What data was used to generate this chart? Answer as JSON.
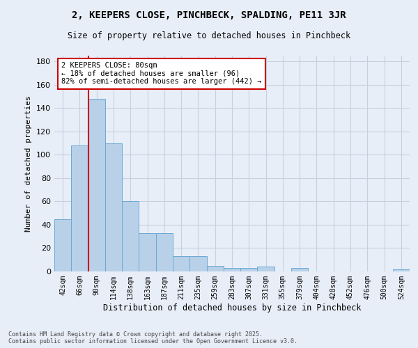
{
  "title": "2, KEEPERS CLOSE, PINCHBECK, SPALDING, PE11 3JR",
  "subtitle": "Size of property relative to detached houses in Pinchbeck",
  "xlabel": "Distribution of detached houses by size in Pinchbeck",
  "ylabel": "Number of detached properties",
  "categories": [
    "42sqm",
    "66sqm",
    "90sqm",
    "114sqm",
    "138sqm",
    "163sqm",
    "187sqm",
    "211sqm",
    "235sqm",
    "259sqm",
    "283sqm",
    "307sqm",
    "331sqm",
    "355sqm",
    "379sqm",
    "404sqm",
    "428sqm",
    "452sqm",
    "476sqm",
    "500sqm",
    "524sqm"
  ],
  "values": [
    45,
    108,
    148,
    110,
    60,
    33,
    33,
    13,
    13,
    5,
    3,
    3,
    4,
    0,
    3,
    0,
    0,
    0,
    0,
    0,
    2
  ],
  "bar_color": "#b8d0e8",
  "bar_edge_color": "#6aaad4",
  "annotation_text": "2 KEEPERS CLOSE: 80sqm\n← 18% of detached houses are smaller (96)\n82% of semi-detached houses are larger (442) →",
  "annotation_box_color": "#ffffff",
  "annotation_box_edge_color": "#cc0000",
  "vline_color": "#cc0000",
  "grid_color": "#c8d0e0",
  "background_color": "#e8eef8",
  "footer_text": "Contains HM Land Registry data © Crown copyright and database right 2025.\nContains public sector information licensed under the Open Government Licence v3.0.",
  "ylim": [
    0,
    185
  ],
  "yticks": [
    0,
    20,
    40,
    60,
    80,
    100,
    120,
    140,
    160,
    180
  ],
  "vline_x": 1.5
}
